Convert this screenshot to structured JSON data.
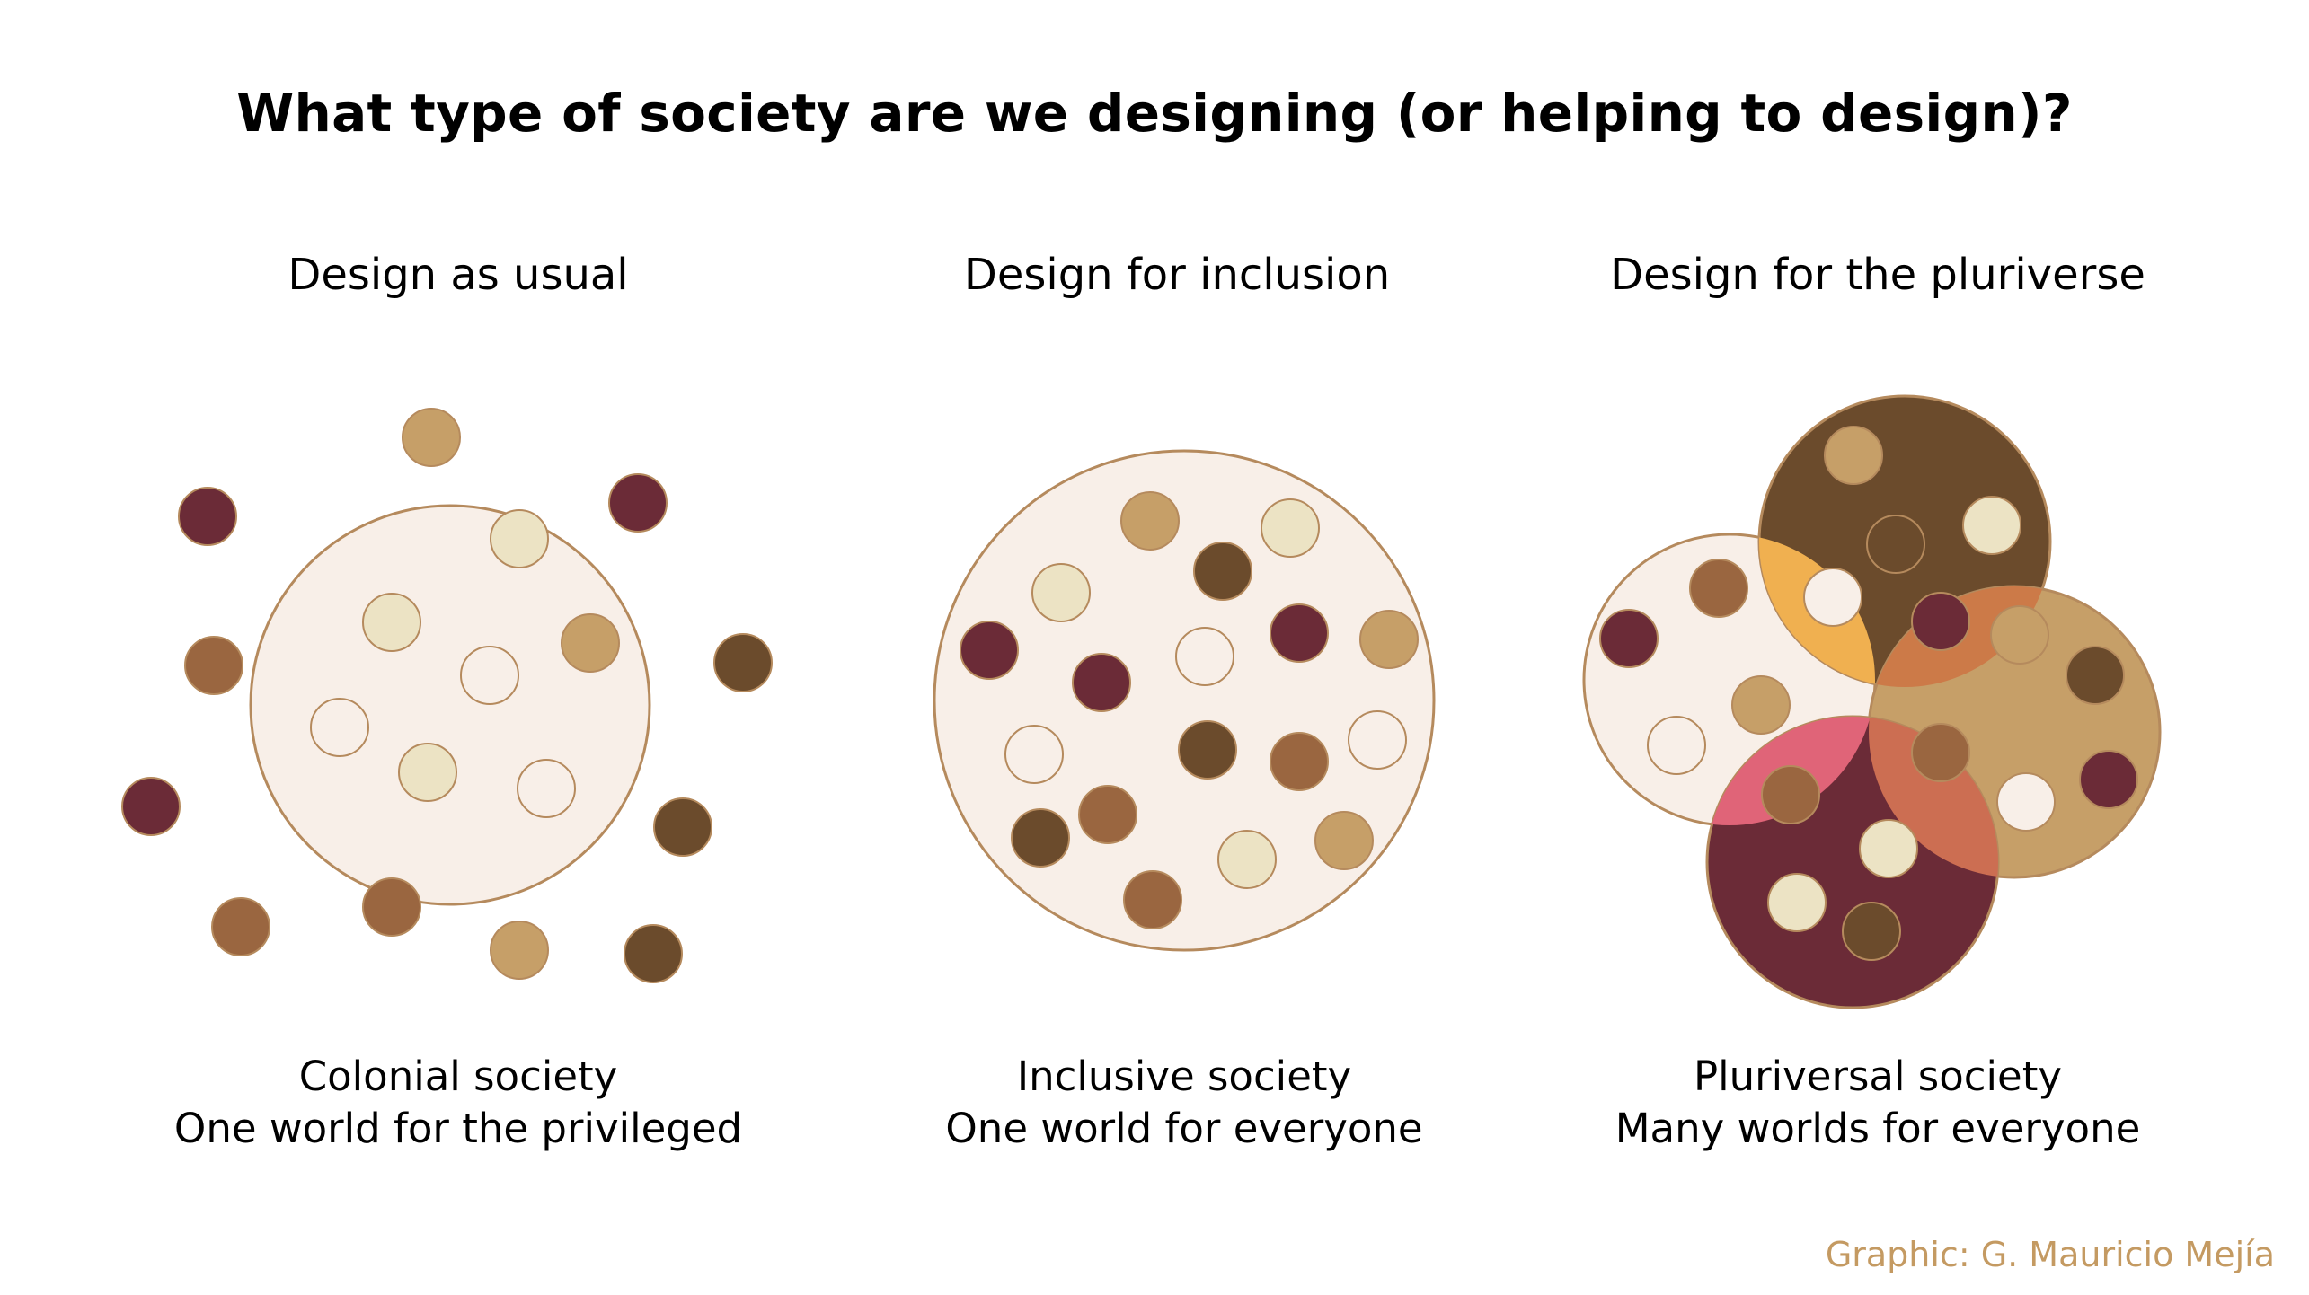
{
  "title": "What type of society are we designing (or helping to design)?",
  "panels": [
    {
      "heading": "Design as usual",
      "caption_line1": "Colonial society",
      "caption_line2": "One world for the privileged"
    },
    {
      "heading": "Design for inclusion",
      "caption_line1": "Inclusive society",
      "caption_line2": "One world for everyone"
    },
    {
      "heading": "Design for the pluriverse",
      "caption_line1": "Pluriversal society",
      "caption_line2": "Many worlds for everyone"
    }
  ],
  "credit": "Graphic: G. Mauricio Mejía",
  "colors": {
    "maroon": "#6b2b37",
    "dark_brown": "#6b4b2c",
    "mid_brown": "#9a6640",
    "tan": "#c69f68",
    "cream": "#ece3c4",
    "pale": "#f8efe8",
    "outline": "#b58a5d",
    "orange_overlap": "#f0b050",
    "pink_overlap": "#e06478",
    "rust_overlap": "#cc7050"
  }
}
